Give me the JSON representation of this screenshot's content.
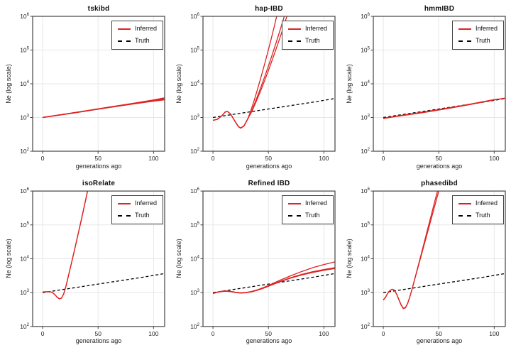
{
  "page": {
    "background": "#ffffff"
  },
  "axes": {
    "xlabel": "generations ago",
    "ylabel": "Ne (log scale)",
    "xticks": [
      0,
      50,
      100
    ],
    "ytick_exponents": [
      2,
      3,
      4,
      5,
      6
    ],
    "xlim": [
      -9,
      110
    ],
    "ylim_exponents": [
      2,
      6
    ],
    "grid": true
  },
  "legend": {
    "inferred_label": "Inferred",
    "truth_label": "Truth"
  },
  "colors": {
    "inferred": "#dd2222",
    "truth": "#000000",
    "grid": "#e7e7e7",
    "frame": "#444444",
    "tick_text": "#222222"
  },
  "truth_points": [
    [
      0,
      1000
    ],
    [
      22,
      1290
    ],
    [
      44,
      1665
    ],
    [
      66,
      2150
    ],
    [
      88,
      2775
    ],
    [
      110,
      3660
    ]
  ],
  "chart_data": [
    {
      "type": "line",
      "title": "tskibd",
      "inferred_lines": [
        [
          [
            0,
            1000
          ],
          [
            20,
            1250
          ],
          [
            40,
            1580
          ],
          [
            60,
            2000
          ],
          [
            80,
            2520
          ],
          [
            100,
            3180
          ],
          [
            110,
            3550
          ]
        ],
        [
          [
            0,
            995
          ],
          [
            20,
            1240
          ],
          [
            40,
            1560
          ],
          [
            60,
            1970
          ],
          [
            80,
            2470
          ],
          [
            100,
            3060
          ],
          [
            110,
            3350
          ]
        ],
        [
          [
            0,
            1010
          ],
          [
            20,
            1265
          ],
          [
            40,
            1600
          ],
          [
            60,
            2040
          ],
          [
            80,
            2590
          ],
          [
            100,
            3320
          ],
          [
            110,
            3830
          ]
        ]
      ]
    },
    {
      "type": "line",
      "title": "hap-IBD",
      "inferred_lines": [
        [
          [
            0,
            820
          ],
          [
            4,
            880
          ],
          [
            8,
            1120
          ],
          [
            11,
            1450
          ],
          [
            13,
            1510
          ],
          [
            16,
            1250
          ],
          [
            20,
            750
          ],
          [
            23,
            530
          ],
          [
            25,
            480
          ],
          [
            28,
            560
          ],
          [
            31,
            850
          ],
          [
            34,
            1550
          ],
          [
            37,
            3100
          ],
          [
            40,
            6600
          ],
          [
            43,
            14500
          ],
          [
            46,
            33000
          ],
          [
            49,
            77000
          ],
          [
            52,
            185000
          ],
          [
            55,
            460000
          ],
          [
            58,
            1200000
          ]
        ],
        [
          [
            0,
            825
          ],
          [
            4,
            885
          ],
          [
            8,
            1125
          ],
          [
            11,
            1455
          ],
          [
            13,
            1515
          ],
          [
            16,
            1255
          ],
          [
            20,
            755
          ],
          [
            23,
            535
          ],
          [
            25,
            485
          ],
          [
            28,
            565
          ],
          [
            31,
            860
          ],
          [
            35,
            1600
          ],
          [
            39,
            3400
          ],
          [
            43,
            7600
          ],
          [
            47,
            17500
          ],
          [
            51,
            42000
          ],
          [
            55,
            105000
          ],
          [
            59,
            270000
          ],
          [
            63,
            720000
          ],
          [
            65,
            1200000
          ]
        ],
        [
          [
            0,
            830
          ],
          [
            4,
            890
          ],
          [
            8,
            1130
          ],
          [
            11,
            1460
          ],
          [
            13,
            1520
          ],
          [
            16,
            1260
          ],
          [
            20,
            760
          ],
          [
            23,
            540
          ],
          [
            25,
            490
          ],
          [
            28,
            570
          ],
          [
            31,
            870
          ],
          [
            35,
            1500
          ],
          [
            39,
            3000
          ],
          [
            43,
            6200
          ],
          [
            47,
            13500
          ],
          [
            51,
            30500
          ],
          [
            55,
            71000
          ],
          [
            59,
            170000
          ],
          [
            63,
            420000
          ],
          [
            67,
            1100000
          ]
        ]
      ]
    },
    {
      "type": "line",
      "title": "hmmIBD",
      "inferred_lines": [
        [
          [
            0,
            930
          ],
          [
            10,
            1050
          ],
          [
            20,
            1170
          ],
          [
            30,
            1310
          ],
          [
            40,
            1470
          ],
          [
            50,
            1660
          ],
          [
            60,
            1890
          ],
          [
            70,
            2160
          ],
          [
            80,
            2490
          ],
          [
            90,
            2880
          ],
          [
            100,
            3330
          ],
          [
            110,
            3760
          ]
        ],
        [
          [
            0,
            950
          ],
          [
            10,
            1075
          ],
          [
            20,
            1205
          ],
          [
            30,
            1355
          ],
          [
            40,
            1525
          ],
          [
            50,
            1725
          ],
          [
            60,
            1955
          ],
          [
            70,
            2230
          ],
          [
            80,
            2560
          ],
          [
            90,
            2950
          ],
          [
            100,
            3400
          ],
          [
            110,
            3680
          ]
        ]
      ]
    },
    {
      "type": "line",
      "title": "isoRelate",
      "inferred_lines": [
        [
          [
            0,
            1050
          ],
          [
            4,
            1070
          ],
          [
            7,
            1060
          ],
          [
            9,
            1000
          ],
          [
            11,
            880
          ],
          [
            13,
            740
          ],
          [
            15,
            660
          ],
          [
            17,
            690
          ],
          [
            19,
            920
          ],
          [
            21,
            1550
          ],
          [
            23,
            2900
          ],
          [
            25,
            5500
          ],
          [
            27,
            10500
          ],
          [
            29,
            20000
          ],
          [
            31,
            39000
          ],
          [
            33,
            76000
          ],
          [
            35,
            150000
          ],
          [
            37,
            300000
          ],
          [
            39,
            600000
          ],
          [
            41,
            1250000
          ]
        ],
        [
          [
            0,
            1040
          ],
          [
            4,
            1060
          ],
          [
            7,
            1050
          ],
          [
            9,
            990
          ],
          [
            11,
            870
          ],
          [
            13,
            730
          ],
          [
            15,
            655
          ],
          [
            17,
            685
          ],
          [
            19,
            910
          ],
          [
            21,
            1520
          ],
          [
            23,
            2850
          ],
          [
            25,
            5400
          ],
          [
            27,
            10200
          ],
          [
            29,
            19500
          ],
          [
            31,
            38000
          ],
          [
            33,
            74000
          ],
          [
            35,
            145000
          ],
          [
            37,
            290000
          ],
          [
            39,
            580000
          ],
          [
            41,
            1200000
          ]
        ]
      ]
    },
    {
      "type": "line",
      "title": "Refined IBD",
      "inferred_lines": [
        [
          [
            0,
            950
          ],
          [
            4,
            1030
          ],
          [
            8,
            1090
          ],
          [
            12,
            1110
          ],
          [
            16,
            1080
          ],
          [
            20,
            1020
          ],
          [
            25,
            980
          ],
          [
            30,
            1000
          ],
          [
            35,
            1070
          ],
          [
            40,
            1180
          ],
          [
            45,
            1350
          ],
          [
            50,
            1560
          ],
          [
            55,
            1820
          ],
          [
            60,
            2120
          ],
          [
            70,
            2760
          ],
          [
            80,
            3450
          ],
          [
            90,
            4150
          ],
          [
            100,
            4800
          ],
          [
            110,
            5450
          ]
        ],
        [
          [
            0,
            940
          ],
          [
            4,
            1020
          ],
          [
            8,
            1080
          ],
          [
            12,
            1100
          ],
          [
            16,
            1070
          ],
          [
            20,
            1010
          ],
          [
            25,
            970
          ],
          [
            30,
            990
          ],
          [
            35,
            1060
          ],
          [
            40,
            1170
          ],
          [
            45,
            1330
          ],
          [
            50,
            1540
          ],
          [
            55,
            1790
          ],
          [
            60,
            2070
          ],
          [
            70,
            2680
          ],
          [
            80,
            3320
          ],
          [
            90,
            3950
          ],
          [
            100,
            4550
          ],
          [
            110,
            5150
          ]
        ],
        [
          [
            0,
            960
          ],
          [
            4,
            1040
          ],
          [
            8,
            1100
          ],
          [
            12,
            1120
          ],
          [
            16,
            1090
          ],
          [
            20,
            1030
          ],
          [
            25,
            990
          ],
          [
            30,
            1010
          ],
          [
            35,
            1090
          ],
          [
            40,
            1210
          ],
          [
            45,
            1390
          ],
          [
            50,
            1630
          ],
          [
            55,
            1930
          ],
          [
            60,
            2290
          ],
          [
            70,
            3130
          ],
          [
            80,
            4200
          ],
          [
            90,
            5450
          ],
          [
            100,
            6750
          ],
          [
            110,
            8100
          ]
        ]
      ]
    },
    {
      "type": "line",
      "title": "phasedibd",
      "inferred_lines": [
        [
          [
            0,
            600
          ],
          [
            2,
            720
          ],
          [
            4,
            950
          ],
          [
            6,
            1150
          ],
          [
            8,
            1250
          ],
          [
            10,
            1180
          ],
          [
            12,
            900
          ],
          [
            14,
            620
          ],
          [
            16,
            430
          ],
          [
            18,
            335
          ],
          [
            20,
            355
          ],
          [
            22,
            480
          ],
          [
            24,
            760
          ],
          [
            26,
            1300
          ],
          [
            28,
            2300
          ],
          [
            30,
            4100
          ],
          [
            32,
            7300
          ],
          [
            34,
            13000
          ],
          [
            36,
            23500
          ],
          [
            38,
            42000
          ],
          [
            40,
            76000
          ],
          [
            42,
            136000
          ],
          [
            44,
            245000
          ],
          [
            46,
            440000
          ],
          [
            48,
            790000
          ],
          [
            50,
            1300000
          ]
        ],
        [
          [
            0,
            615
          ],
          [
            2,
            735
          ],
          [
            4,
            965
          ],
          [
            6,
            1165
          ],
          [
            8,
            1265
          ],
          [
            10,
            1195
          ],
          [
            12,
            915
          ],
          [
            14,
            635
          ],
          [
            16,
            445
          ],
          [
            18,
            345
          ],
          [
            20,
            365
          ],
          [
            22,
            490
          ],
          [
            24,
            770
          ],
          [
            26,
            1290
          ],
          [
            28,
            2250
          ],
          [
            30,
            3900
          ],
          [
            32,
            6800
          ],
          [
            34,
            11800
          ],
          [
            36,
            20500
          ],
          [
            38,
            35500
          ],
          [
            40,
            62000
          ],
          [
            42,
            108000
          ],
          [
            44,
            188000
          ],
          [
            46,
            328000
          ],
          [
            48,
            572000
          ],
          [
            50,
            1000000
          ],
          [
            52,
            1300000
          ]
        ]
      ]
    }
  ]
}
